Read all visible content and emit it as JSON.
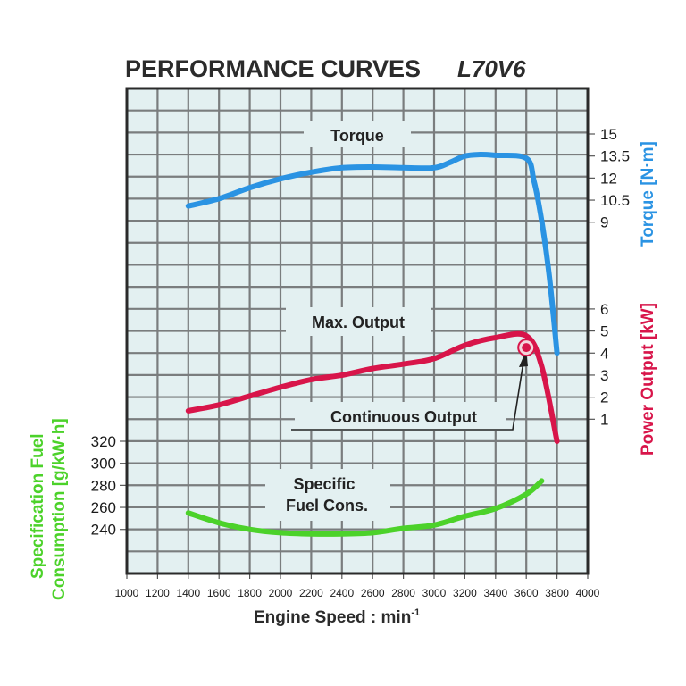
{
  "chart_data": {
    "type": "line",
    "title": "PERFORMANCE CURVES",
    "model": "L70V6",
    "xlabel": "Engine Speed : min",
    "xlabel_superscript": "-1",
    "xlim": [
      1000,
      4000
    ],
    "x_ticks": [
      1000,
      1200,
      1400,
      1600,
      1800,
      2000,
      2200,
      2400,
      2600,
      2800,
      3000,
      3200,
      3400,
      3600,
      3800,
      4000
    ],
    "grid": true,
    "axes": {
      "torque": {
        "label": "Torque [N·m]",
        "side": "right",
        "ticks": [
          "15",
          "13.5",
          "12",
          "10.5",
          "9"
        ],
        "tick_values": [
          15,
          13.5,
          12,
          10.5,
          9
        ],
        "color": "#2a93e3"
      },
      "power": {
        "label": "Power Output [kW]",
        "side": "right",
        "ticks": [
          "6",
          "5",
          "4",
          "3",
          "2",
          "1"
        ],
        "tick_values": [
          6,
          5,
          4,
          3,
          2,
          1
        ],
        "color": "#d8154a"
      },
      "sfc": {
        "label_line1": "Specification Fuel",
        "label_line2": "Consumption [g/kW·h]",
        "side": "left",
        "ticks": [
          "320",
          "300",
          "280",
          "260",
          "240"
        ],
        "tick_values": [
          320,
          300,
          280,
          260,
          240
        ],
        "color": "#4cd22a"
      }
    },
    "series": [
      {
        "name": "Torque",
        "axis": "torque",
        "color": "#2a93e3",
        "x": [
          1400,
          1600,
          1800,
          2000,
          2200,
          2400,
          2600,
          2800,
          3000,
          3100,
          3200,
          3300,
          3400,
          3600,
          3650,
          3700,
          3750,
          3800
        ],
        "values": [
          10.1,
          10.6,
          11.35,
          11.95,
          12.4,
          12.7,
          12.75,
          12.7,
          12.7,
          13.05,
          13.5,
          13.6,
          13.55,
          13.35,
          11.8,
          9.1,
          5.3,
          0.1
        ]
      },
      {
        "name": "Max. Output",
        "axis": "power",
        "color": "#d8154a",
        "x": [
          1400,
          1600,
          1800,
          2000,
          2200,
          2400,
          2600,
          2800,
          3000,
          3200,
          3400,
          3600,
          3700,
          3800
        ],
        "values": [
          1.38,
          1.65,
          2.05,
          2.45,
          2.8,
          3.0,
          3.3,
          3.5,
          3.75,
          4.35,
          4.7,
          4.78,
          3.4,
          0.0
        ]
      },
      {
        "name": "Specific Fuel Cons.",
        "axis": "sfc",
        "color": "#4cd22a",
        "x": [
          1400,
          1600,
          1800,
          2000,
          2200,
          2400,
          2600,
          2800,
          3000,
          3200,
          3400,
          3600,
          3700
        ],
        "values": [
          255,
          246,
          240,
          237,
          236,
          236,
          237,
          241,
          244,
          252,
          259,
          272,
          284
        ]
      }
    ],
    "annotations": {
      "torque_label": "Torque",
      "max_output_label": "Max. Output",
      "continuous_output_label": "Continuous Output",
      "continuous_output_point": {
        "x": 3600,
        "value": 4.25,
        "axis": "power"
      },
      "sfc_label_line1": "Specific",
      "sfc_label_line2": "Fuel Cons."
    }
  }
}
